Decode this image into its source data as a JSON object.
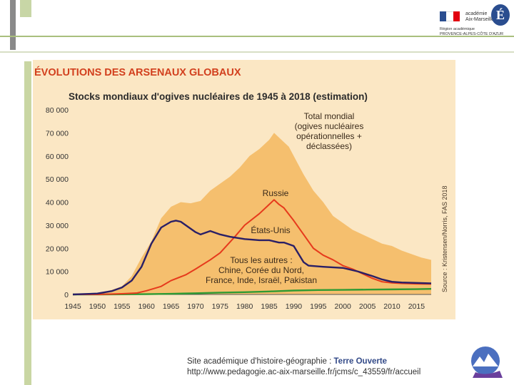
{
  "header": {
    "academie_line1": "académie",
    "academie_line2": "Aix-Marseille",
    "region_line1": "Région académique",
    "region_line2": "PROVENCE-ALPES-CÔTE D'AZUR"
  },
  "footer": {
    "site_prefix": "Site académique d'histoire-géographie : ",
    "site_name": "Terre Ouverte",
    "url": "http://www.pedagogie.ac-aix-marseille.fr/jcms/c_43559/fr/accueil"
  },
  "colors": {
    "panel": "#fbe7c4",
    "total_fill": "#f5bf6e",
    "russia": "#e63a1c",
    "usa": "#2a1f66",
    "others": "#2f9a33",
    "heading": "#d2401e"
  },
  "chart_data": {
    "type": "area",
    "heading": "ÉVOLUTIONS DES ARSENAUX GLOBAUX",
    "title": "Stocks mondiaux d'ogives nucléaires de 1945 à 2018 (estimation)",
    "source": "Source : Kristensen/Norris, FAS 2018",
    "xlim": [
      1945,
      2018
    ],
    "ylim": [
      0,
      80000
    ],
    "y_ticks": [
      0,
      10000,
      20000,
      30000,
      40000,
      50000,
      60000,
      70000,
      80000
    ],
    "y_tick_labels": [
      "0",
      "10 000",
      "20 000",
      "30 000",
      "40 000",
      "50 000",
      "60 000",
      "70 000",
      "80 000"
    ],
    "x_ticks": [
      1945,
      1950,
      1955,
      1960,
      1965,
      1970,
      1975,
      1980,
      1985,
      1990,
      1995,
      2000,
      2005,
      2010,
      2015
    ],
    "x_tick_labels": [
      "1945",
      "1950",
      "1955",
      "1960",
      "1965",
      "1970",
      "1975",
      "1980",
      "1985",
      "1990",
      "1995",
      "2000",
      "2005",
      "2010",
      "2015"
    ],
    "annotations": {
      "total": [
        "Total mondial",
        "(ogives nucléaires",
        "opérationnelles +",
        "déclassées)"
      ],
      "russia": "Russie",
      "usa": "États-Unis",
      "others": [
        "Tous les autres :",
        "Chine, Corée du Nord,",
        "France, Inde, Israël, Pakistan"
      ]
    },
    "series": [
      {
        "name": "Total mondial",
        "key": "total",
        "x": [
          1945,
          1950,
          1953,
          1955,
          1957,
          1959,
          1961,
          1963,
          1965,
          1967,
          1969,
          1971,
          1973,
          1975,
          1977,
          1979,
          1981,
          1983,
          1985,
          1986,
          1987,
          1988,
          1989,
          1990,
          1992,
          1994,
          1996,
          1998,
          2000,
          2002,
          2004,
          2006,
          2008,
          2010,
          2012,
          2014,
          2016,
          2018
        ],
        "values": [
          0,
          400,
          2000,
          3500,
          8000,
          16000,
          23000,
          33000,
          38000,
          40000,
          39500,
          40500,
          45000,
          48000,
          51000,
          55000,
          60000,
          63000,
          67000,
          70000,
          68000,
          66000,
          64000,
          60000,
          52000,
          45000,
          40000,
          34000,
          31000,
          28000,
          26000,
          24000,
          22000,
          21000,
          19000,
          17500,
          16000,
          15000
        ]
      },
      {
        "name": "Russie",
        "key": "russia",
        "x": [
          1945,
          1950,
          1955,
          1958,
          1960,
          1963,
          1965,
          1968,
          1970,
          1973,
          1975,
          1978,
          1980,
          1983,
          1985,
          1986,
          1987,
          1988,
          1990,
          1992,
          1994,
          1996,
          1998,
          2000,
          2002,
          2004,
          2006,
          2008,
          2010,
          2012,
          2015,
          2018
        ],
        "values": [
          0,
          0,
          300,
          600,
          1600,
          3500,
          6000,
          8500,
          11000,
          15000,
          18000,
          25000,
          30000,
          35000,
          39000,
          41000,
          39000,
          37500,
          32000,
          26000,
          20000,
          17000,
          15000,
          12500,
          11000,
          9000,
          7000,
          5500,
          5000,
          4800,
          4600,
          4500
        ]
      },
      {
        "name": "États-Unis",
        "key": "usa",
        "x": [
          1945,
          1950,
          1953,
          1955,
          1957,
          1959,
          1961,
          1963,
          1965,
          1966,
          1967,
          1968,
          1970,
          1971,
          1973,
          1975,
          1977,
          1980,
          1983,
          1985,
          1987,
          1988,
          1990,
          1992,
          1993,
          1996,
          2000,
          2003,
          2006,
          2008,
          2010,
          2012,
          2015,
          2018
        ],
        "values": [
          0,
          400,
          1500,
          3000,
          6000,
          12000,
          22000,
          29000,
          31500,
          32000,
          31500,
          30000,
          27000,
          26000,
          27500,
          26000,
          25000,
          24000,
          23500,
          23500,
          22500,
          22500,
          21000,
          14000,
          12500,
          12000,
          11500,
          10000,
          8000,
          6500,
          5500,
          5200,
          5000,
          4800
        ]
      },
      {
        "name": "Tous les autres",
        "key": "others",
        "x": [
          1945,
          1950,
          1955,
          1960,
          1965,
          1970,
          1975,
          1980,
          1985,
          1990,
          1995,
          2000,
          2005,
          2010,
          2015,
          2018
        ],
        "values": [
          0,
          0,
          50,
          150,
          300,
          500,
          800,
          1000,
          1300,
          1700,
          1900,
          2000,
          2100,
          2200,
          2300,
          2400
        ]
      }
    ]
  }
}
